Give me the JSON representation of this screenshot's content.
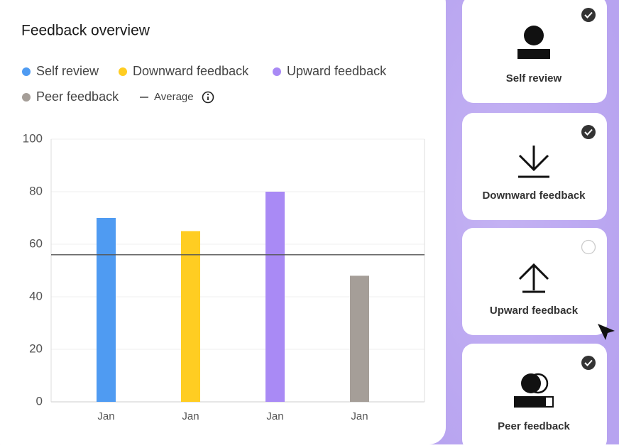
{
  "chart_data": {
    "type": "bar",
    "title": "Feedback overview",
    "legend": [
      "Self review",
      "Downward feedback",
      "Upward feedback",
      "Peer feedback"
    ],
    "average_label": "Average",
    "average": 56,
    "categories": [
      "Jan",
      "Jan",
      "Jan",
      "Jan"
    ],
    "values": [
      70,
      65,
      80,
      48
    ],
    "colors": [
      "#4f9bf2",
      "#ffcd22",
      "#a98af5",
      "#a59e98"
    ],
    "ylim": [
      0,
      100
    ],
    "yticks": [
      0,
      20,
      40,
      60,
      80,
      100
    ],
    "grid": true
  },
  "cards": [
    {
      "label": "Self review",
      "checked": true
    },
    {
      "label": "Downward feedback",
      "checked": true
    },
    {
      "label": "Upward feedback",
      "checked": false
    },
    {
      "label": "Peer feedback",
      "checked": true
    }
  ]
}
